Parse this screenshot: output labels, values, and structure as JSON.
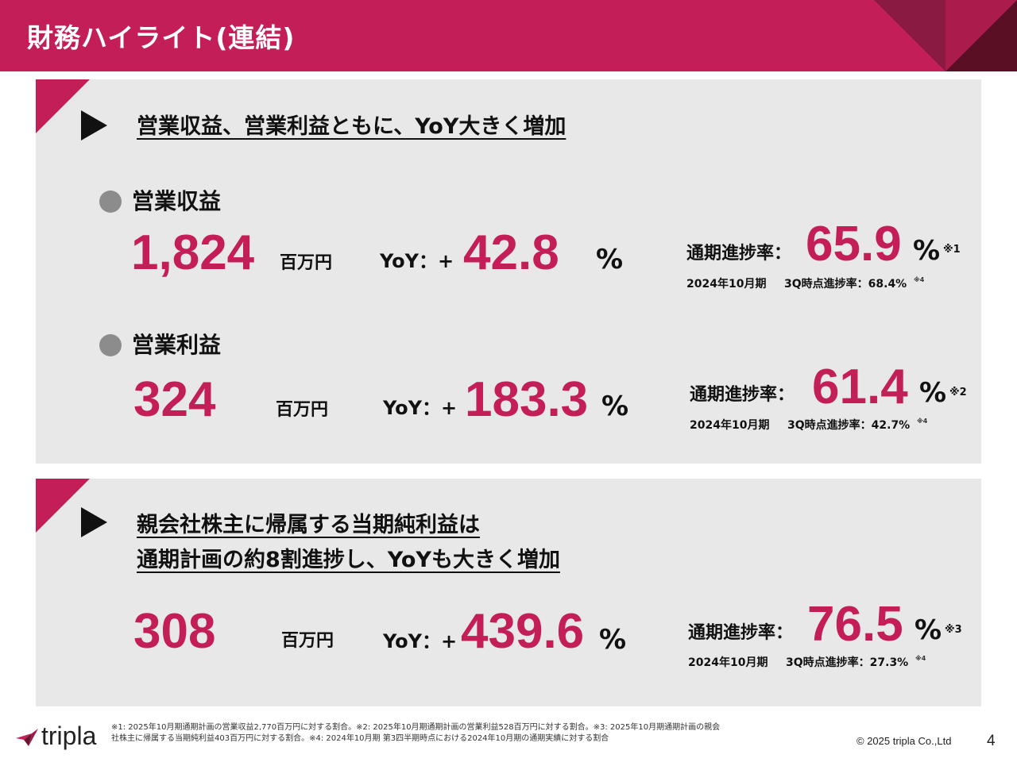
{
  "header": {
    "title": "財務ハイライト(連結)",
    "accent_color": "#c31e58"
  },
  "section1": {
    "headline": "営業収益、営業利益ともに、YoY大きく増加",
    "revenue": {
      "label": "営業収益",
      "value": "1,824",
      "unit": "百万円",
      "yoy_label": "YoY：+",
      "yoy_value": "42.8",
      "yoy_pct": "%",
      "progress_label": "通期進捗率：",
      "progress_value": "65.9",
      "progress_pct": "%",
      "progress_note": "※1",
      "prev_label": "2024年10月期",
      "prev_text": "3Q時点進捗率：68.4%",
      "prev_note": "※4"
    },
    "operating_income": {
      "label": "営業利益",
      "value": "324",
      "unit": "百万円",
      "yoy_label": "YoY：+",
      "yoy_value": "183.3",
      "yoy_pct": "%",
      "progress_label": "通期進捗率：",
      "progress_value": "61.4",
      "progress_pct": "%",
      "progress_note": "※2",
      "prev_label": "2024年10月期",
      "prev_text": "3Q時点進捗率：42.7%",
      "prev_note": "※4"
    }
  },
  "section2": {
    "headline_line1": "親会社株主に帰属する当期純利益は",
    "headline_line2": "通期計画の約8割進捗し、YoYも大きく増加",
    "net_income": {
      "value": "308",
      "unit": "百万円",
      "yoy_label": "YoY：+",
      "yoy_value": "439.6",
      "yoy_pct": "%",
      "progress_label": "通期進捗率：",
      "progress_value": "76.5",
      "progress_pct": "%",
      "progress_note": "※3",
      "prev_label": "2024年10月期",
      "prev_text": "3Q時点進捗率：27.3%",
      "prev_note": "※4"
    }
  },
  "footer": {
    "logo_text": "tripla",
    "footnote_line1": "※1: 2025年10月期通期計画の営業収益2,770百万円に対する割合。※2: 2025年10月期通期計画の営業利益528百万円に対する割合。※3: 2025年10月期通期計画の親会",
    "footnote_line2": "社株主に帰属する当期純利益403百万円に対する割合。※4: 2024年10月期 第3四半期時点における2024年10月期の通期実績に対する割合",
    "copyright": "© 2025 tripla Co.,Ltd",
    "page_number": "4"
  }
}
